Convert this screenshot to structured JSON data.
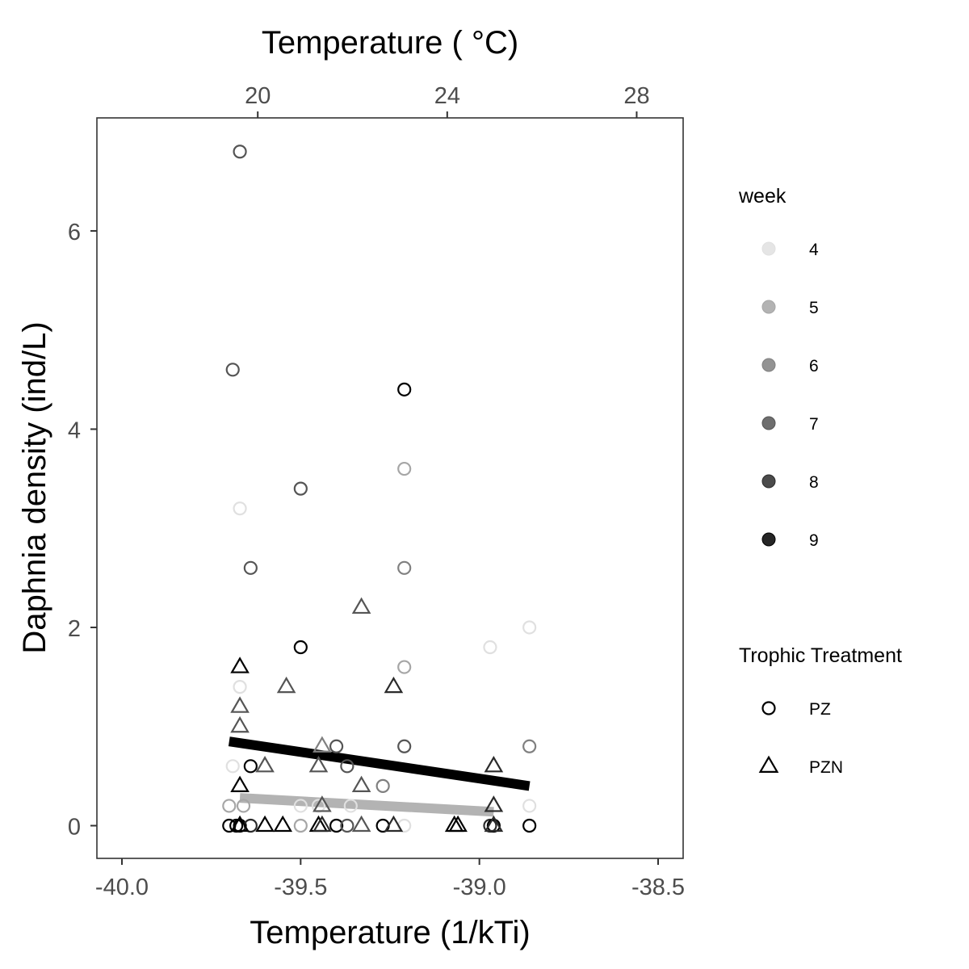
{
  "chart_data": {
    "type": "scatter",
    "xlabel": "Temperature (1/kTi)",
    "ylabel": "Daphnia density (ind/L)",
    "top_axis_title": "Temperature ( °C)",
    "xlim": [
      -40.07,
      -38.43
    ],
    "ylim": [
      -0.33,
      7.14
    ],
    "x_ticks": [
      -40.0,
      -39.5,
      -39.0,
      -38.5
    ],
    "x_tick_labels": [
      "-40.0",
      "-39.5",
      "-39.0",
      "-38.5"
    ],
    "y_ticks": [
      0,
      2,
      4,
      6
    ],
    "y_tick_labels": [
      "0",
      "2",
      "4",
      "6"
    ],
    "top_ticks": [
      20,
      24,
      28
    ],
    "top_tick_labels": [
      "20",
      "24",
      "28"
    ],
    "top_tick_x": [
      -39.62,
      -39.09,
      -38.56
    ],
    "grid": false,
    "legend": {
      "position": "right",
      "week": {
        "title": "week",
        "entries": [
          {
            "label": "4",
            "color": "#e0e0e0"
          },
          {
            "label": "5",
            "color": "#a6a6a6"
          },
          {
            "label": "6",
            "color": "#808080"
          },
          {
            "label": "7",
            "color": "#555555"
          },
          {
            "label": "8",
            "color": "#2b2b2b"
          },
          {
            "label": "9",
            "color": "#000000"
          }
        ]
      },
      "treatment": {
        "title": "Trophic Treatment",
        "entries": [
          {
            "label": "PZ",
            "shape": "circle"
          },
          {
            "label": "PZN",
            "shape": "triangle"
          }
        ]
      }
    },
    "week_colors": {
      "4": "#e0e0e0",
      "5": "#a6a6a6",
      "6": "#808080",
      "7": "#555555",
      "8": "#2b2b2b",
      "9": "#000000"
    },
    "series": [
      {
        "name": "PZ",
        "shape": "circle",
        "points": [
          {
            "x": -39.67,
            "y": 6.8,
            "week": 7
          },
          {
            "x": -39.69,
            "y": 4.6,
            "week": 7
          },
          {
            "x": -39.21,
            "y": 4.4,
            "week": 9
          },
          {
            "x": -39.21,
            "y": 3.6,
            "week": 5
          },
          {
            "x": -39.5,
            "y": 3.4,
            "week": 7
          },
          {
            "x": -39.67,
            "y": 3.2,
            "week": 4
          },
          {
            "x": -39.64,
            "y": 2.6,
            "week": 7
          },
          {
            "x": -39.21,
            "y": 2.6,
            "week": 6
          },
          {
            "x": -38.86,
            "y": 2.0,
            "week": 4
          },
          {
            "x": -39.5,
            "y": 1.8,
            "week": 9
          },
          {
            "x": -38.97,
            "y": 1.8,
            "week": 4
          },
          {
            "x": -39.21,
            "y": 1.6,
            "week": 5
          },
          {
            "x": -39.67,
            "y": 1.4,
            "week": 4
          },
          {
            "x": -39.4,
            "y": 0.8,
            "week": 7
          },
          {
            "x": -39.21,
            "y": 0.8,
            "week": 7
          },
          {
            "x": -38.86,
            "y": 0.8,
            "week": 6
          },
          {
            "x": -39.69,
            "y": 0.6,
            "week": 4
          },
          {
            "x": -39.64,
            "y": 0.6,
            "week": 9
          },
          {
            "x": -39.37,
            "y": 0.6,
            "week": 7
          },
          {
            "x": -39.27,
            "y": 0.4,
            "week": 6
          },
          {
            "x": -39.7,
            "y": 0.2,
            "week": 5
          },
          {
            "x": -39.66,
            "y": 0.2,
            "week": 5
          },
          {
            "x": -39.5,
            "y": 0.2,
            "week": 4
          },
          {
            "x": -39.45,
            "y": 0.2,
            "week": 4
          },
          {
            "x": -39.36,
            "y": 0.2,
            "week": 4
          },
          {
            "x": -38.86,
            "y": 0.2,
            "week": 4
          },
          {
            "x": -39.7,
            "y": 0.0,
            "week": 9
          },
          {
            "x": -39.68,
            "y": 0.0,
            "week": 9
          },
          {
            "x": -39.67,
            "y": 0.0,
            "week": 9
          },
          {
            "x": -39.64,
            "y": 0.0,
            "week": 8
          },
          {
            "x": -39.5,
            "y": 0.0,
            "week": 5
          },
          {
            "x": -39.4,
            "y": 0.0,
            "week": 9
          },
          {
            "x": -39.37,
            "y": 0.0,
            "week": 7
          },
          {
            "x": -39.27,
            "y": 0.0,
            "week": 9
          },
          {
            "x": -39.21,
            "y": 0.0,
            "week": 4
          },
          {
            "x": -38.97,
            "y": 0.0,
            "week": 8
          },
          {
            "x": -38.96,
            "y": 0.0,
            "week": 9
          },
          {
            "x": -38.86,
            "y": 0.0,
            "week": 9
          }
        ]
      },
      {
        "name": "PZN",
        "shape": "triangle",
        "points": [
          {
            "x": -39.33,
            "y": 2.2,
            "week": 7
          },
          {
            "x": -39.67,
            "y": 1.6,
            "week": 9
          },
          {
            "x": -39.54,
            "y": 1.4,
            "week": 7
          },
          {
            "x": -39.24,
            "y": 1.4,
            "week": 8
          },
          {
            "x": -39.67,
            "y": 1.2,
            "week": 7
          },
          {
            "x": -39.67,
            "y": 1.0,
            "week": 7
          },
          {
            "x": -39.44,
            "y": 0.8,
            "week": 6
          },
          {
            "x": -39.6,
            "y": 0.6,
            "week": 7
          },
          {
            "x": -39.45,
            "y": 0.6,
            "week": 7
          },
          {
            "x": -38.96,
            "y": 0.6,
            "week": 8
          },
          {
            "x": -39.67,
            "y": 0.4,
            "week": 9
          },
          {
            "x": -39.33,
            "y": 0.4,
            "week": 7
          },
          {
            "x": -39.44,
            "y": 0.2,
            "week": 7
          },
          {
            "x": -38.96,
            "y": 0.2,
            "week": 8
          },
          {
            "x": -39.67,
            "y": 0.0,
            "week": 9
          },
          {
            "x": -39.6,
            "y": 0.0,
            "week": 9
          },
          {
            "x": -39.55,
            "y": 0.0,
            "week": 9
          },
          {
            "x": -39.45,
            "y": 0.0,
            "week": 9
          },
          {
            "x": -39.44,
            "y": 0.0,
            "week": 8
          },
          {
            "x": -39.33,
            "y": 0.0,
            "week": 7
          },
          {
            "x": -39.24,
            "y": 0.0,
            "week": 8
          },
          {
            "x": -39.07,
            "y": 0.0,
            "week": 9
          },
          {
            "x": -39.06,
            "y": 0.0,
            "week": 9
          },
          {
            "x": -38.96,
            "y": 0.0,
            "week": 8
          }
        ]
      }
    ],
    "fit_lines": [
      {
        "color": "#000000",
        "x": [
          -39.7,
          -38.86
        ],
        "y": [
          0.85,
          0.4
        ]
      },
      {
        "color": "#b3b3b3",
        "x": [
          -39.67,
          -38.96
        ],
        "y": [
          0.28,
          0.14
        ]
      }
    ]
  }
}
